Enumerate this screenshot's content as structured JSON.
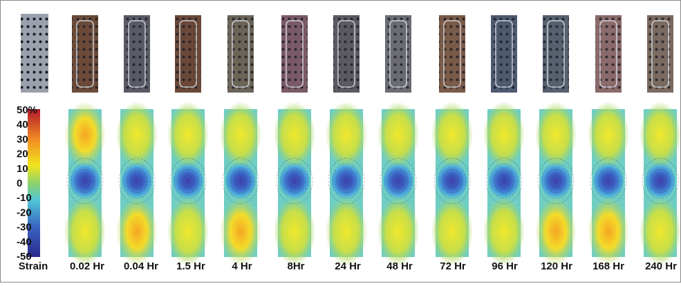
{
  "colorbar": {
    "ticks": [
      "50%",
      "40",
      "30",
      "20",
      "10",
      "0",
      "-10",
      "-20",
      "-30",
      "-40",
      "-50"
    ]
  },
  "labels": [
    "Strain",
    "0.02 Hr",
    "0.04 Hr",
    "1.5 Hr",
    "4 Hr",
    "8Hr",
    "24 Hr",
    "48 Hr",
    "72 Hr",
    "96 Hr",
    "120 Hr",
    "168 Hr",
    "240 Hr"
  ]
}
